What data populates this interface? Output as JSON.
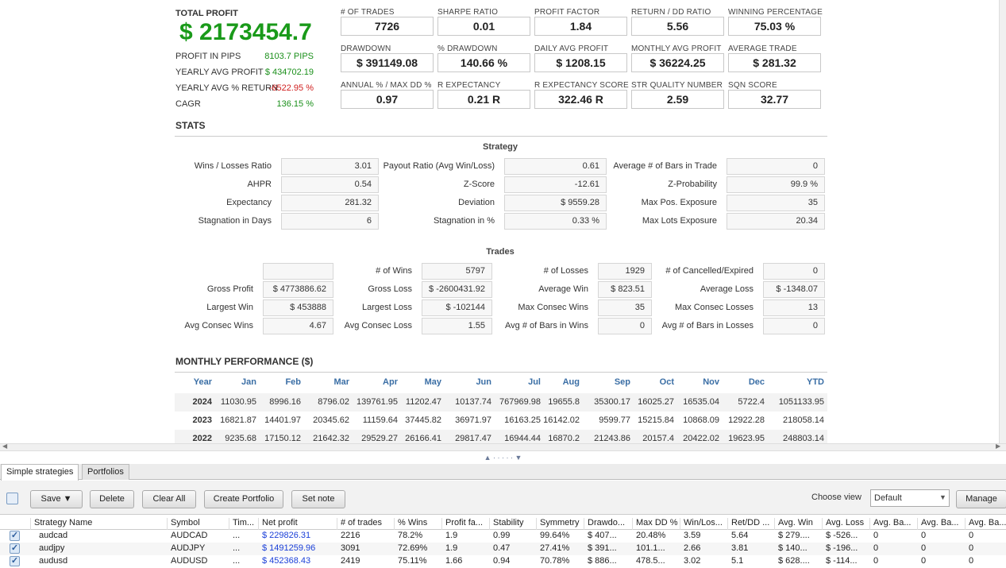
{
  "header": {
    "total_profit_label": "TOTAL PROFIT",
    "total_profit_value": "$ 2173454.7",
    "left_stats": [
      {
        "label": "PROFIT IN PIPS",
        "value": "8103.7 PIPS",
        "color": "#1a8f1a"
      },
      {
        "label": "YEARLY AVG PROFIT",
        "value": "$ 434702.19",
        "color": "#1a8f1a"
      },
      {
        "label": "YEARLY AVG % RETURN",
        "value": "-6522.95 %",
        "color": "#d02020"
      },
      {
        "label": "CAGR",
        "value": "136.15 %",
        "color": "#1a8f1a"
      }
    ],
    "kpis": [
      [
        {
          "label": "# OF TRADES",
          "value": "7726"
        },
        {
          "label": "SHARPE RATIO",
          "value": "0.01"
        },
        {
          "label": "PROFIT FACTOR",
          "value": "1.84"
        },
        {
          "label": "RETURN / DD RATIO",
          "value": "5.56"
        },
        {
          "label": "WINNING PERCENTAGE",
          "value": "75.03 %"
        }
      ],
      [
        {
          "label": "DRAWDOWN",
          "value": "$ 391149.08"
        },
        {
          "label": "% DRAWDOWN",
          "value": "140.66 %"
        },
        {
          "label": "DAILY AVG PROFIT",
          "value": "$ 1208.15"
        },
        {
          "label": "MONTHLY AVG PROFIT",
          "value": "$ 36224.25"
        },
        {
          "label": "AVERAGE TRADE",
          "value": "$ 281.32"
        }
      ],
      [
        {
          "label": "ANNUAL % / MAX DD %",
          "value": "0.97"
        },
        {
          "label": "R EXPECTANCY",
          "value": "0.21 R"
        },
        {
          "label": "R EXPECTANCY SCORE",
          "value": "322.46 R"
        },
        {
          "label": "STR QUALITY NUMBER",
          "value": "2.59"
        },
        {
          "label": "SQN SCORE",
          "value": "32.77"
        }
      ]
    ]
  },
  "stats": {
    "title": "STATS",
    "strategy_title": "Strategy",
    "strategy_rows": [
      [
        "Wins / Losses Ratio",
        "3.01",
        "Payout Ratio (Avg Win/Loss)",
        "0.61",
        "Average # of Bars in Trade",
        "0"
      ],
      [
        "AHPR",
        "0.54",
        "Z-Score",
        "-12.61",
        "Z-Probability",
        "99.9 %"
      ],
      [
        "Expectancy",
        "281.32",
        "Deviation",
        "$ 9559.28",
        "Max Pos. Exposure",
        "35"
      ],
      [
        "Stagnation in Days",
        "6",
        "Stagnation in %",
        "0.33 %",
        "Max Lots Exposure",
        "20.34"
      ]
    ],
    "trades_title": "Trades",
    "trades_rows": [
      [
        "",
        "",
        "# of Wins",
        "5797",
        "# of Losses",
        "1929",
        "# of Cancelled/Expired",
        "0"
      ],
      [
        "Gross Profit",
        "$ 4773886.62",
        "Gross Loss",
        "$ -2600431.92",
        "Average Win",
        "$ 823.51",
        "Average Loss",
        "$ -1348.07"
      ],
      [
        "Largest Win",
        "$ 453888",
        "Largest Loss",
        "$ -102144",
        "Max Consec Wins",
        "35",
        "Max Consec Losses",
        "13"
      ],
      [
        "Avg Consec Wins",
        "4.67",
        "Avg Consec Loss",
        "1.55",
        "Avg # of Bars in Wins",
        "0",
        "Avg # of Bars in Losses",
        "0"
      ]
    ]
  },
  "monthly": {
    "title": "MONTHLY PERFORMANCE ($)",
    "headers": [
      "Year",
      "Jan",
      "Feb",
      "Mar",
      "Apr",
      "May",
      "Jun",
      "Jul",
      "Aug",
      "Sep",
      "Oct",
      "Nov",
      "Dec",
      "YTD"
    ],
    "rows": [
      [
        "2024",
        "11030.95",
        "8996.16",
        "8796.02",
        "139761.95",
        "11202.47",
        "10137.74",
        "767969.98",
        "19655.8",
        "35300.17",
        "16025.27",
        "16535.04",
        "5722.4",
        "1051133.95"
      ],
      [
        "2023",
        "16821.87",
        "14401.97",
        "20345.62",
        "11159.64",
        "37445.82",
        "36971.97",
        "16163.25",
        "16142.02",
        "9599.77",
        "15215.84",
        "10868.09",
        "12922.28",
        "218058.14"
      ],
      [
        "2022",
        "9235.68",
        "17150.12",
        "21642.32",
        "29529.27",
        "26166.41",
        "29817.47",
        "16944.44",
        "16870.2",
        "21243.86",
        "20157.4",
        "20422.02",
        "19623.95",
        "248803.14"
      ]
    ]
  },
  "splitter": "▲ · · · · · ▼",
  "tabs": [
    "Simple strategies",
    "Portfolios"
  ],
  "toolbar": {
    "save": "Save ▼",
    "delete": "Delete",
    "clear_all": "Clear All",
    "create_portfolio": "Create Portfolio",
    "set_note": "Set note",
    "choose_view_label": "Choose view",
    "choose_view_value": "Default",
    "manage": "Manage"
  },
  "grid": {
    "headers": [
      "Strategy Name",
      "Symbol",
      "Tim...",
      "Net profit",
      "# of trades",
      "% Wins",
      "Profit fa...",
      "Stability",
      "Symmetry",
      "Drawdo...",
      "Max DD %",
      "Win/Los...",
      "Ret/DD ...",
      "Avg. Win",
      "Avg. Loss",
      "Avg. Ba...",
      "Avg. Ba...",
      "Avg. Ba..."
    ],
    "rows": [
      [
        "audcad",
        "AUDCAD",
        "...",
        "$ 229826.31",
        "2216",
        "78.2%",
        "1.9",
        "0.99",
        "99.64%",
        "$ 407...",
        "20.48%",
        "3.59",
        "5.64",
        "$ 279....",
        "$ -526...",
        "0",
        "0",
        "0"
      ],
      [
        "audjpy",
        "AUDJPY",
        "...",
        "$ 1491259.96",
        "3091",
        "72.69%",
        "1.9",
        "0.47",
        "27.41%",
        "$ 391...",
        "101.1...",
        "2.66",
        "3.81",
        "$ 140...",
        "$ -196...",
        "0",
        "0",
        "0"
      ],
      [
        "audusd",
        "AUDUSD",
        "...",
        "$ 452368.43",
        "2419",
        "75.11%",
        "1.66",
        "0.94",
        "70.78%",
        "$ 886...",
        "478.5...",
        "3.02",
        "5.1",
        "$ 628....",
        "$ -114...",
        "0",
        "0",
        "0"
      ]
    ]
  }
}
